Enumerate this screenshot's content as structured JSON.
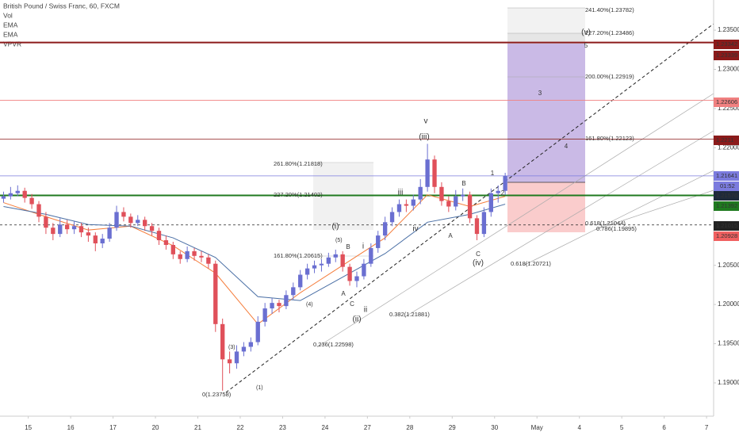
{
  "chart_data": {
    "type": "candlestick",
    "title": "British Pound / Swiss Franc, 60, FXCM",
    "indicators": [
      "Vol",
      "VPVR"
    ],
    "countdown": "01:52",
    "up_color": "#6a6fd1",
    "down_color": "#e0505a",
    "xlim": [
      -0.5,
      100.5
    ],
    "xticks": [
      {
        "value": 3.5,
        "label": "15"
      },
      {
        "value": 9.5,
        "label": "16"
      },
      {
        "value": 15.5,
        "label": "17"
      },
      {
        "value": 21.5,
        "label": "20"
      },
      {
        "value": 27.5,
        "label": "21"
      },
      {
        "value": 33.5,
        "label": "22"
      },
      {
        "value": 39.5,
        "label": "23"
      },
      {
        "value": 45.5,
        "label": "24"
      },
      {
        "value": 51.5,
        "label": "27"
      },
      {
        "value": 57.5,
        "label": "28"
      },
      {
        "value": 63.5,
        "label": "29"
      },
      {
        "value": 69.5,
        "label": "30"
      },
      {
        "value": 75.5,
        "label": "May"
      },
      {
        "value": 81.5,
        "label": "4"
      },
      {
        "value": 87.5,
        "label": "5"
      },
      {
        "value": 93.5,
        "label": "6"
      },
      {
        "value": 99.5,
        "label": "7"
      }
    ],
    "ylim": [
      1.18575,
      1.23885
    ],
    "yticks": [
      {
        "value": 1.235,
        "label": "1.23500"
      },
      {
        "value": 1.23,
        "label": "1.23000"
      },
      {
        "value": 1.225,
        "label": "1.22500"
      },
      {
        "value": 1.22,
        "label": "1.22000"
      },
      {
        "value": 1.205,
        "label": "1.20500"
      },
      {
        "value": 1.2,
        "label": "1.20000"
      },
      {
        "value": 1.195,
        "label": "1.19500"
      },
      {
        "value": 1.19,
        "label": "1.19000"
      }
    ],
    "grid": false,
    "candles": [
      [
        0,
        1.2135,
        1.2144,
        1.213,
        1.2138
      ],
      [
        1,
        1.2138,
        1.215,
        1.2134,
        1.2142
      ],
      [
        2,
        1.2142,
        1.2152,
        1.2138,
        1.2145
      ],
      [
        3,
        1.2145,
        1.2149,
        1.213,
        1.2136
      ],
      [
        4,
        1.2136,
        1.2141,
        1.2122,
        1.2128
      ],
      [
        5,
        1.2128,
        1.2132,
        1.2105,
        1.2112
      ],
      [
        6,
        1.2112,
        1.2118,
        1.209,
        1.2098
      ],
      [
        7,
        1.2098,
        1.2104,
        1.2082,
        1.209
      ],
      [
        8,
        1.209,
        1.211,
        1.2086,
        1.2102
      ],
      [
        9,
        1.2102,
        1.2108,
        1.209,
        1.2096
      ],
      [
        10,
        1.2096,
        1.2106,
        1.209,
        1.21
      ],
      [
        11,
        1.21,
        1.2104,
        1.2086,
        1.2092
      ],
      [
        12,
        1.2092,
        1.2098,
        1.208,
        1.2088
      ],
      [
        13,
        1.2088,
        1.2092,
        1.2068,
        1.2078
      ],
      [
        14,
        1.2078,
        1.209,
        1.2072,
        1.2084
      ],
      [
        15,
        1.2084,
        1.2104,
        1.208,
        1.2098
      ],
      [
        16,
        1.2098,
        1.2126,
        1.2094,
        1.2118
      ],
      [
        17,
        1.2118,
        1.2124,
        1.2106,
        1.2112
      ],
      [
        18,
        1.2112,
        1.2116,
        1.2098,
        1.2104
      ],
      [
        19,
        1.2104,
        1.2114,
        1.21,
        1.2108
      ],
      [
        20,
        1.2108,
        1.2112,
        1.2094,
        1.21
      ],
      [
        21,
        1.21,
        1.2104,
        1.2088,
        1.2094
      ],
      [
        22,
        1.2094,
        1.2098,
        1.2076,
        1.2082
      ],
      [
        23,
        1.2082,
        1.2088,
        1.207,
        1.2076
      ],
      [
        24,
        1.2076,
        1.208,
        1.2058,
        1.2064
      ],
      [
        25,
        1.2064,
        1.2068,
        1.2052,
        1.2058
      ],
      [
        26,
        1.2058,
        1.2074,
        1.2054,
        1.2068
      ],
      [
        27,
        1.2068,
        1.2072,
        1.2056,
        1.2062
      ],
      [
        28,
        1.2062,
        1.2068,
        1.2054,
        1.206
      ],
      [
        29,
        1.206,
        1.2064,
        1.2046,
        1.2052
      ],
      [
        30,
        1.2052,
        1.2056,
        1.1965,
        1.1975
      ],
      [
        31,
        1.1975,
        1.1982,
        1.189,
        1.193
      ],
      [
        32,
        1.193,
        1.194,
        1.1912,
        1.1925
      ],
      [
        33,
        1.1925,
        1.1948,
        1.1918,
        1.194
      ],
      [
        34,
        1.194,
        1.1952,
        1.1934,
        1.1946
      ],
      [
        35,
        1.1946,
        1.1958,
        1.194,
        1.1952
      ],
      [
        36,
        1.1952,
        1.1985,
        1.1948,
        1.1978
      ],
      [
        37,
        1.1978,
        1.2002,
        1.1972,
        1.1995
      ],
      [
        38,
        1.1995,
        1.2008,
        1.1988,
        1.2002
      ],
      [
        39,
        1.2002,
        1.2006,
        1.199,
        1.1998
      ],
      [
        40,
        1.1998,
        1.2018,
        1.1994,
        1.2012
      ],
      [
        41,
        1.2012,
        1.2028,
        1.2006,
        1.2022
      ],
      [
        42,
        1.2022,
        1.2044,
        1.2018,
        1.2038
      ],
      [
        43,
        1.2038,
        1.2052,
        1.2032,
        1.2046
      ],
      [
        44,
        1.2046,
        1.2056,
        1.204,
        1.205
      ],
      [
        45,
        1.205,
        1.2058,
        1.2042,
        1.2052
      ],
      [
        46,
        1.2052,
        1.2066,
        1.2048,
        1.206
      ],
      [
        47,
        1.206,
        1.207,
        1.2054,
        1.2064
      ],
      [
        48,
        1.2064,
        1.2068,
        1.2042,
        1.2048
      ],
      [
        49,
        1.2048,
        1.2052,
        1.2024,
        1.203
      ],
      [
        50,
        1.203,
        1.2042,
        1.2022,
        1.2036
      ],
      [
        51,
        1.2036,
        1.2058,
        1.2032,
        1.2052
      ],
      [
        52,
        1.2052,
        1.2078,
        1.2048,
        1.2072
      ],
      [
        53,
        1.2072,
        1.2094,
        1.2066,
        1.2088
      ],
      [
        54,
        1.2088,
        1.2112,
        1.2082,
        1.2105
      ],
      [
        55,
        1.2105,
        1.2124,
        1.21,
        1.2118
      ],
      [
        56,
        1.2118,
        1.2134,
        1.2112,
        1.2128
      ],
      [
        57,
        1.2128,
        1.2134,
        1.2118,
        1.2126
      ],
      [
        58,
        1.2126,
        1.214,
        1.212,
        1.2134
      ],
      [
        59,
        1.2134,
        1.216,
        1.2128,
        1.215
      ],
      [
        60,
        1.215,
        1.2205,
        1.2144,
        1.2185
      ],
      [
        61,
        1.2185,
        1.219,
        1.2142,
        1.215
      ],
      [
        62,
        1.215,
        1.2156,
        1.2126,
        1.2132
      ],
      [
        63,
        1.2132,
        1.2138,
        1.2118,
        1.2125
      ],
      [
        64,
        1.2125,
        1.2146,
        1.212,
        1.2138
      ],
      [
        65,
        1.2138,
        1.2148,
        1.2132,
        1.214
      ],
      [
        66,
        1.214,
        1.2144,
        1.2104,
        1.211
      ],
      [
        67,
        1.211,
        1.2114,
        1.2082,
        1.209
      ],
      [
        68,
        1.209,
        1.2124,
        1.2086,
        1.2118
      ],
      [
        69,
        1.2118,
        1.2148,
        1.2112,
        1.2142
      ],
      [
        70,
        1.2142,
        1.2152,
        1.213,
        1.2145
      ],
      [
        71,
        1.2145,
        1.2168,
        1.214,
        1.2164
      ]
    ],
    "lines": [
      {
        "name": "EMA",
        "color": "#f57c3a",
        "x": [
          0,
          6,
          12,
          18,
          24,
          30,
          36,
          42,
          48,
          54,
          60,
          66,
          71
        ],
        "values": [
          1.213,
          1.2112,
          1.2095,
          1.21,
          1.2075,
          1.204,
          1.1975,
          1.2015,
          1.205,
          1.2085,
          1.214,
          1.2125,
          1.2138
        ]
      },
      {
        "name": "EMA",
        "color": "#4a6fa5",
        "x": [
          0,
          6,
          12,
          18,
          24,
          30,
          36,
          42,
          48,
          54,
          60,
          66,
          71
        ],
        "values": [
          1.2125,
          1.2115,
          1.2102,
          1.21,
          1.2085,
          1.206,
          1.201,
          1.2005,
          1.2035,
          1.2065,
          1.2105,
          1.2115,
          1.2128
        ]
      }
    ],
    "levels": [
      {
        "price": 1.23342,
        "color": "#8b1a1a",
        "style": "thick"
      },
      {
        "price": 1.23339,
        "color": "#8b1a1a",
        "style": "none"
      },
      {
        "price": 1.22606,
        "color": "#f08080",
        "style": "thin"
      },
      {
        "price": 1.2211,
        "color": "#8b1a1a",
        "style": "thin"
      },
      {
        "price": 1.21641,
        "color": "#7b7bde",
        "style": "thin"
      },
      {
        "price": 1.21576,
        "color": "#1e2a3a",
        "style": "none"
      },
      {
        "price": 1.21392,
        "color": "#1f7a1f",
        "style": "thick"
      },
      {
        "price": 1.21015,
        "color": "#222222",
        "style": "dashed"
      },
      {
        "price": 1.20928,
        "color": "#f06060",
        "style": "none"
      }
    ],
    "annotations": [
      "v",
      "(iii)",
      "iii",
      "iv",
      "(i)",
      "(5)",
      "B",
      "A",
      "C",
      "i",
      "ii",
      "(ii)",
      "(4)",
      "(3)",
      "(1)",
      "B",
      "A",
      "C",
      "(iv)",
      "1",
      "2",
      "3",
      "4",
      "(v)",
      "5",
      "261.80%(1.21818)",
      "227.20%(1.21402)",
      "161.80%(1.20615)",
      "241.40%(1.23782)",
      "227.20%(1.23486)",
      "200.00%(1.22919)",
      "161.80%(1.22123)",
      "0.618(1.21044)",
      "0.786(1.19895)",
      "0.618(1.20721)",
      "0.382(1.21881)",
      "0.236(1.22598)",
      "0(1.23758)"
    ]
  }
}
